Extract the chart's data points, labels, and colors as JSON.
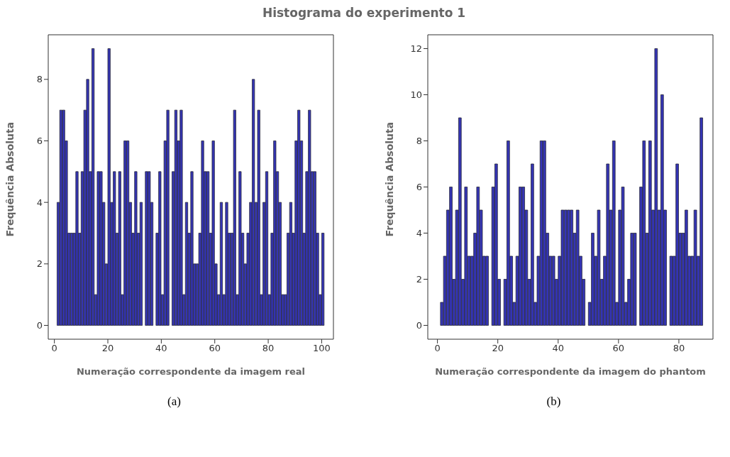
{
  "chart_data": [
    {
      "type": "histogram",
      "title": "Histograma do experimento 1",
      "xlabel": "Numeração correspondente da imagem real",
      "ylabel": "Frequência Absoluta",
      "annotations": [
        "(a)"
      ],
      "color": "#3434b4",
      "bins": [
        1,
        2,
        3,
        4,
        5,
        6,
        7,
        8,
        9,
        10,
        11,
        12,
        13,
        14,
        15,
        16,
        17,
        18,
        19,
        20,
        21,
        22,
        23,
        24,
        25,
        26,
        27,
        28,
        29,
        30,
        31,
        32,
        33,
        34,
        35,
        36,
        37,
        38,
        39,
        40,
        41,
        42,
        43,
        44,
        45,
        46,
        47,
        48,
        49,
        50,
        51,
        52,
        53,
        54,
        55,
        56,
        57,
        58,
        59,
        60,
        61,
        62,
        63,
        64,
        65,
        66,
        67,
        68,
        69,
        70,
        71,
        72,
        73,
        74,
        75,
        76,
        77,
        78,
        79,
        80,
        81,
        82,
        83,
        84,
        85,
        86,
        87,
        88,
        89,
        90,
        91,
        92,
        93,
        94,
        95,
        96,
        97,
        98,
        99,
        100,
        101
      ],
      "values": [
        4,
        7,
        7,
        6,
        3,
        3,
        3,
        5,
        3,
        5,
        7,
        8,
        5,
        9,
        1,
        5,
        5,
        4,
        2,
        9,
        4,
        5,
        3,
        5,
        1,
        6,
        6,
        4,
        3,
        5,
        3,
        4,
        0,
        5,
        5,
        4,
        0,
        3,
        5,
        1,
        6,
        7,
        0,
        5,
        7,
        6,
        7,
        1,
        4,
        3,
        5,
        2,
        2,
        3,
        6,
        5,
        5,
        3,
        6,
        2,
        1,
        4,
        1,
        4,
        3,
        3,
        7,
        1,
        5,
        3,
        2,
        3,
        4,
        8,
        4,
        7,
        1,
        4,
        5,
        1,
        3,
        6,
        5,
        4,
        1,
        1,
        3,
        4,
        3,
        6,
        7,
        6,
        3,
        5,
        7,
        5,
        5,
        3,
        1,
        3
      ],
      "xlim": [
        -2.3,
        104.4
      ],
      "xticks": [
        0,
        20,
        40,
        60,
        80,
        100
      ],
      "ylim": [
        -0.45,
        9.45
      ],
      "yticks": [
        0,
        2,
        4,
        6,
        8
      ],
      "grid": false
    },
    {
      "type": "histogram",
      "xlabel": "Numeração correspondente da imagem do phantom",
      "ylabel": "Frequência Absoluta",
      "annotations": [
        "(b)"
      ],
      "color": "#3434b4",
      "bins": [
        1,
        2,
        3,
        4,
        5,
        6,
        7,
        8,
        9,
        10,
        11,
        12,
        13,
        14,
        15,
        16,
        17,
        18,
        19,
        20,
        21,
        22,
        23,
        24,
        25,
        26,
        27,
        28,
        29,
        30,
        31,
        32,
        33,
        34,
        35,
        36,
        37,
        38,
        39,
        40,
        41,
        42,
        43,
        44,
        45,
        46,
        47,
        48,
        49,
        50,
        51,
        52,
        53,
        54,
        55,
        56,
        57,
        58,
        59,
        60,
        61,
        62,
        63,
        64,
        65,
        66,
        67,
        68,
        69,
        70,
        71,
        72,
        73,
        74,
        75,
        76,
        77,
        78,
        79,
        80,
        81,
        82,
        83,
        84,
        85,
        86,
        87,
        88
      ],
      "values": [
        1,
        3,
        5,
        6,
        2,
        5,
        9,
        2,
        6,
        3,
        3,
        4,
        6,
        5,
        3,
        3,
        0,
        6,
        7,
        2,
        0,
        2,
        8,
        3,
        1,
        3,
        6,
        6,
        5,
        2,
        7,
        1,
        3,
        8,
        8,
        4,
        3,
        3,
        2,
        3,
        5,
        5,
        5,
        5,
        4,
        5,
        3,
        2,
        0,
        1,
        4,
        3,
        5,
        2,
        3,
        7,
        5,
        8,
        1,
        5,
        6,
        1,
        2,
        4,
        4,
        0,
        6,
        8,
        4,
        8,
        5,
        12,
        5,
        10,
        5,
        0,
        3,
        3,
        7,
        4,
        4,
        5,
        3,
        3,
        5,
        3,
        9
      ],
      "xlim": [
        -3.2,
        91.3
      ],
      "xticks": [
        0,
        20,
        40,
        60,
        80
      ],
      "ylim": [
        -0.6,
        12.6
      ],
      "yticks": [
        0,
        2,
        4,
        6,
        8,
        10,
        12
      ],
      "grid": false
    }
  ]
}
